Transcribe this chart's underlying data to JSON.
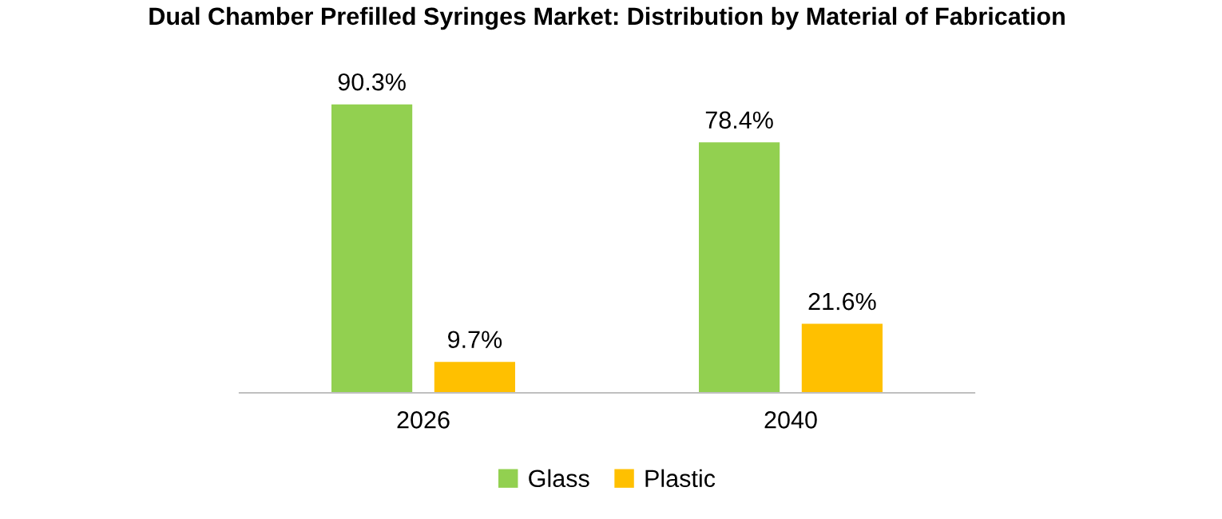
{
  "chart_data": {
    "type": "bar",
    "title": "Dual Chamber Prefilled Syringes Market: Distribution by Material of Fabrication",
    "categories": [
      "2026",
      "2040"
    ],
    "series": [
      {
        "name": "Glass",
        "color": "#92d050",
        "values": [
          90.3,
          78.4
        ],
        "value_labels": [
          "90.3%",
          "78.4%"
        ]
      },
      {
        "name": "Plastic",
        "color": "#ffc000",
        "values": [
          9.7,
          21.6
        ],
        "value_labels": [
          "9.7%",
          "21.6%"
        ]
      }
    ],
    "tick_labels": "x",
    "legend": "bottom",
    "grid": false
  }
}
